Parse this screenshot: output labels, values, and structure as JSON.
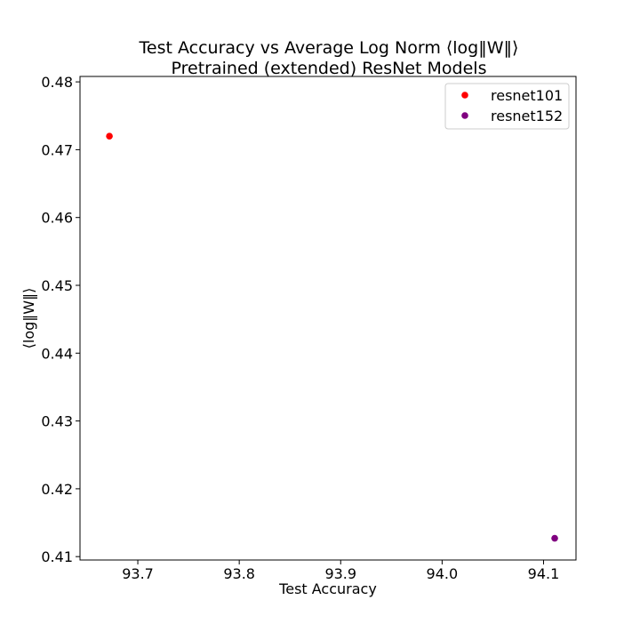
{
  "chart_data": {
    "type": "scatter",
    "title": "Test Accuracy vs Average Log Norm ⟨log‖W‖⟩",
    "subtitle": "Pretrained (extended) ResNet Models",
    "xlabel": "Test Accuracy",
    "ylabel": "⟨log‖W‖⟩",
    "xlim": [
      93.643,
      94.132
    ],
    "ylim": [
      0.4095,
      0.4808
    ],
    "xticks": [
      93.7,
      93.8,
      93.9,
      94.0,
      94.1
    ],
    "xtick_labels": [
      "93.7",
      "93.8",
      "93.9",
      "94.0",
      "94.1"
    ],
    "yticks": [
      0.41,
      0.42,
      0.43,
      0.44,
      0.45,
      0.46,
      0.47,
      0.48
    ],
    "ytick_labels": [
      "0.41",
      "0.42",
      "0.43",
      "0.44",
      "0.45",
      "0.46",
      "0.47",
      "0.48"
    ],
    "grid": false,
    "legend_position": "top-right",
    "series": [
      {
        "name": "resnet101",
        "color": "#ff0000",
        "points": [
          {
            "x": 93.672,
            "y": 0.472
          }
        ]
      },
      {
        "name": "resnet152",
        "color": "#800080",
        "points": [
          {
            "x": 94.111,
            "y": 0.4127
          }
        ]
      }
    ]
  }
}
